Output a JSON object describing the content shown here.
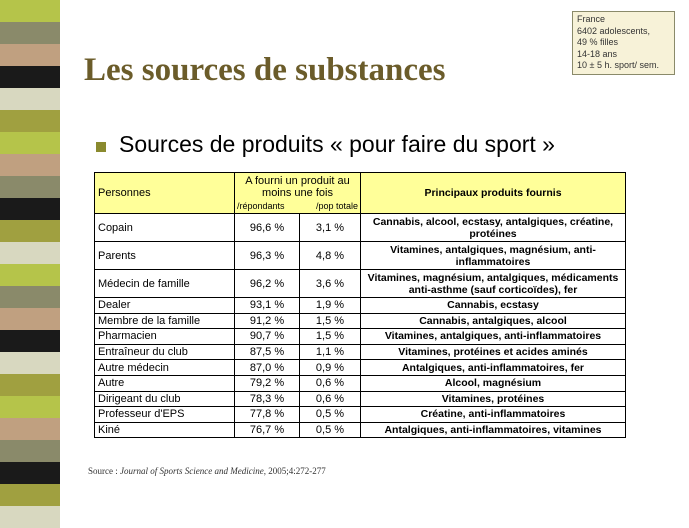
{
  "info_box": [
    "France",
    "6402 adolescents,",
    "49 % filles",
    "14-18 ans",
    "10 ± 5 h. sport/ sem."
  ],
  "title": "Les sources de substances",
  "subtitle": "Sources de produits « pour faire du sport »",
  "table": {
    "headers": {
      "personnes": "Personnes",
      "fourni": "A fourni un produit au moins une fois",
      "sub_repondants": "/répondants",
      "sub_pop": "/pop totale",
      "produits": "Principaux produits fournis"
    },
    "rows": [
      {
        "personne": "Copain",
        "repondants": "96,6 %",
        "pop": "3,1 %",
        "produits": "Cannabis, alcool, ecstasy, antalgiques, créatine, protéines"
      },
      {
        "personne": "Parents",
        "repondants": "96,3 %",
        "pop": "4,8 %",
        "produits": "Vitamines, antalgiques, magnésium, anti-inflammatoires"
      },
      {
        "personne": "Médecin de famille",
        "repondants": "96,2 %",
        "pop": "3,6 %",
        "produits": "Vitamines, magnésium, antalgiques, médicaments anti-asthme (sauf corticoïdes), fer"
      },
      {
        "personne": "Dealer",
        "repondants": "93,1 %",
        "pop": "1,9 %",
        "produits": "Cannabis, ecstasy"
      },
      {
        "personne": "Membre de la famille",
        "repondants": "91,2 %",
        "pop": "1,5 %",
        "produits": "Cannabis, antalgiques, alcool"
      },
      {
        "personne": "Pharmacien",
        "repondants": "90,7 %",
        "pop": "1,5 %",
        "produits": "Vitamines, antalgiques, anti-inflammatoires"
      },
      {
        "personne": "Entraîneur du club",
        "repondants": "87,5 %",
        "pop": "1,1 %",
        "produits": "Vitamines, protéines et acides aminés"
      },
      {
        "personne": "Autre médecin",
        "repondants": "87,0 %",
        "pop": "0,9 %",
        "produits": "Antalgiques, anti-inflammatoires, fer"
      },
      {
        "personne": "Autre",
        "repondants": "79,2 %",
        "pop": "0,6 %",
        "produits": "Alcool, magnésium"
      },
      {
        "personne": "Dirigeant du club",
        "repondants": "78,3 %",
        "pop": "0,6 %",
        "produits": "Vitamines, protéines"
      },
      {
        "personne": "Professeur d'EPS",
        "repondants": "77,8 %",
        "pop": "0,5 %",
        "produits": "Créatine, anti-inflammatoires"
      },
      {
        "personne": "Kiné",
        "repondants": "76,7 %",
        "pop": "0,5 %",
        "produits": "Antalgiques, anti-inflammatoires, vitamines"
      }
    ]
  },
  "source": {
    "prefix": "Source : ",
    "journal": "Journal of Sports Science and Medicine",
    "ref": ", 2005;4:272-277"
  },
  "colors": {
    "title": "#6b5c2a",
    "header_bg": "#ffff99",
    "bullet": "#8a8a2e",
    "stripe": [
      "#b5c44a",
      "#8a8a6a",
      "#c0a080",
      "#1a1a1a",
      "#d8d8c0",
      "#a0a040"
    ]
  }
}
